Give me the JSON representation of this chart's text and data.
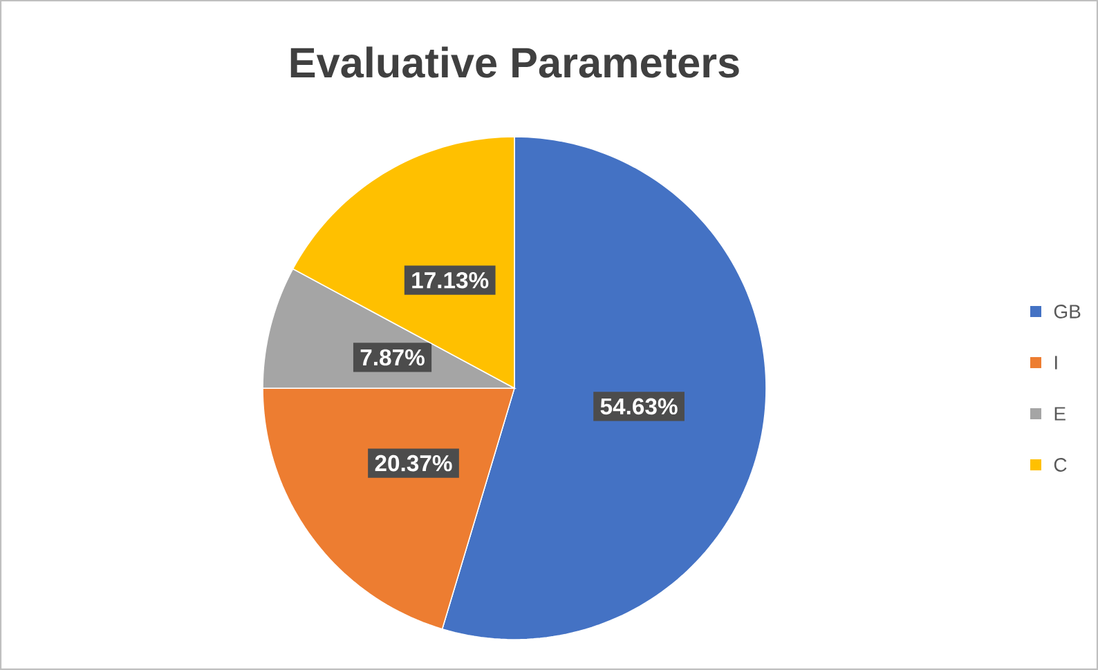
{
  "chart_data": {
    "type": "pie",
    "title": "Evaluative Parameters",
    "categories": [
      "GB",
      "I",
      "E",
      "C"
    ],
    "values": [
      54.63,
      20.37,
      7.87,
      17.13
    ],
    "colors": [
      "#4472c4",
      "#ed7d31",
      "#a5a5a5",
      "#ffc000"
    ],
    "value_labels": [
      "54.63%",
      "20.37%",
      "7.87%",
      "17.13%"
    ],
    "legend": "right"
  }
}
